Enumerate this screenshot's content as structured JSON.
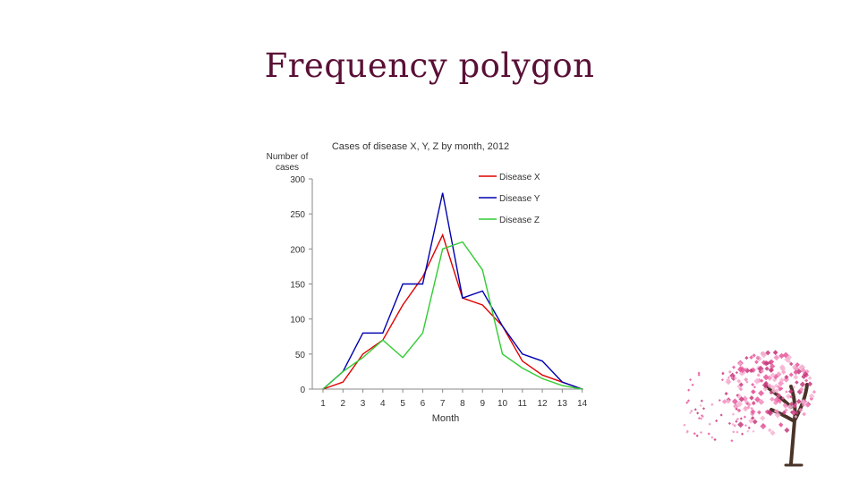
{
  "slide": {
    "title": "Frequency polygon"
  },
  "chart_data": {
    "type": "line",
    "title": "Cases of disease X, Y, Z by month, 2012",
    "ylabel": "Number of cases",
    "xlabel": "Month",
    "x": [
      1,
      2,
      3,
      4,
      5,
      6,
      7,
      8,
      9,
      10,
      11,
      12,
      13,
      14
    ],
    "xlim": [
      1,
      14.6
    ],
    "ylim": [
      0,
      300
    ],
    "yticks": [
      0,
      50,
      100,
      150,
      200,
      250,
      300
    ],
    "grid": false,
    "legend_position": "top-right",
    "series": [
      {
        "name": "Disease X",
        "color": "#e00000",
        "values": [
          0,
          10,
          50,
          70,
          120,
          160,
          220,
          130,
          120,
          90,
          40,
          20,
          10,
          0
        ]
      },
      {
        "name": "Disease Y",
        "color": "#0000b0",
        "values": [
          0,
          25,
          80,
          80,
          150,
          150,
          280,
          130,
          140,
          90,
          50,
          40,
          10,
          0
        ]
      },
      {
        "name": "Disease Z",
        "color": "#33cc33",
        "values": [
          0,
          25,
          45,
          70,
          45,
          80,
          200,
          210,
          170,
          50,
          30,
          15,
          5,
          0
        ]
      }
    ]
  },
  "decoration": {
    "icon": "cherry-blossom-tree-icon",
    "blossom_colors": [
      "#e7569a",
      "#f28cbd",
      "#c73a7d",
      "#f6b3d2"
    ],
    "trunk_color": "#4a3328"
  }
}
